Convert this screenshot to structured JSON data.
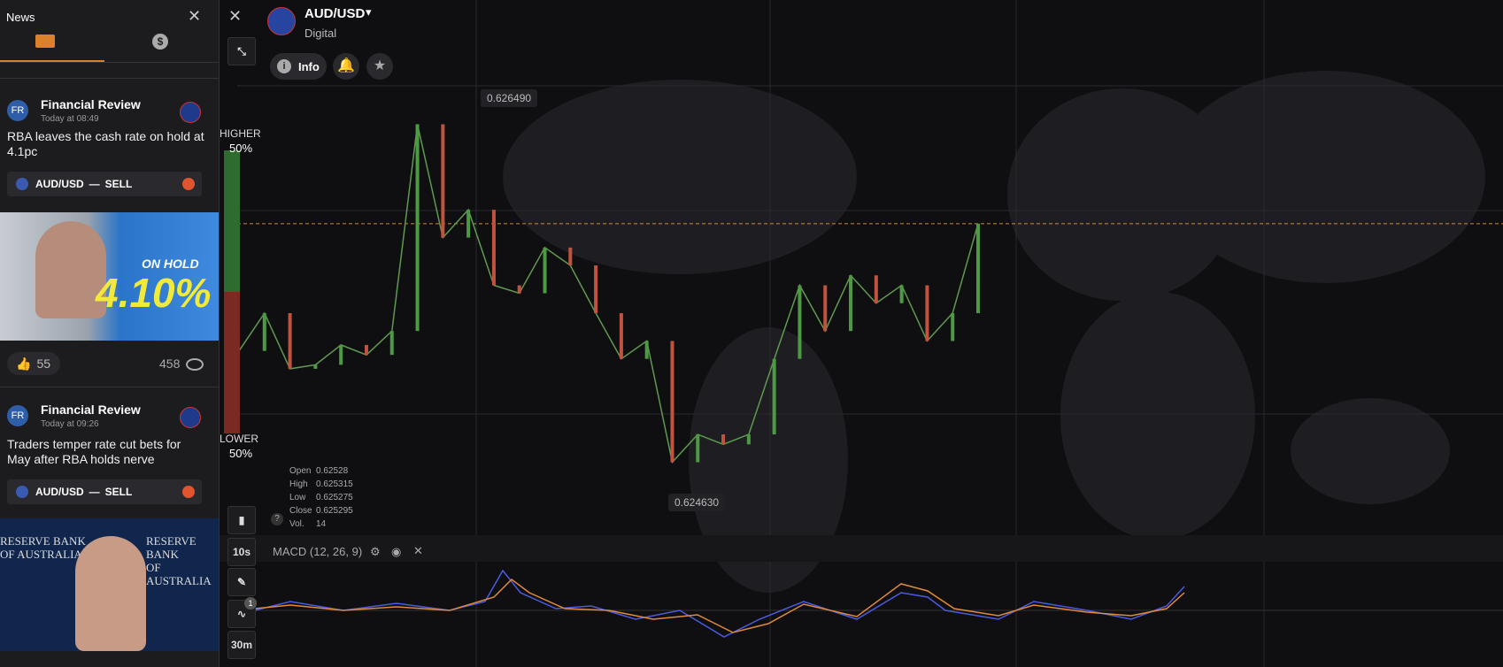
{
  "news_panel": {
    "title": "News",
    "items": [
      {
        "source": "Financial Review",
        "time": "Today at 08:49",
        "headline": "RBA leaves the cash rate on hold at 4.1pc",
        "pair": "AUD/USD",
        "action": "SELL",
        "image_text": [
          "ON HOLD",
          "4.10%"
        ],
        "likes": 55,
        "views": 458
      },
      {
        "source": "Financial Review",
        "time": "Today at 09:26",
        "headline": "Traders temper rate cut bets for May after RBA holds nerve",
        "pair": "AUD/USD",
        "action": "SELL",
        "image_text": [
          "RESERVE BANK",
          "OF AUSTRALIA"
        ]
      }
    ]
  },
  "asset": {
    "name": "AUD/USD",
    "kind": "Digital",
    "info": "Info"
  },
  "sentiment": {
    "higher": "HIGHER",
    "higher_pct": "50%",
    "lower": "LOWER",
    "lower_pct": "50%"
  },
  "chart": {
    "price_extremes": {
      "high": {
        "value": 0.62649,
        "label": "0.626490"
      },
      "low": {
        "value": 0.62463,
        "label": "0.624630"
      }
    },
    "prices": [
      0.62529,
      0.62548,
      0.6252,
      0.62522,
      0.62532,
      0.62527,
      0.62539,
      0.62643,
      0.62586,
      0.626,
      0.62562,
      0.62558,
      0.62581,
      0.62572,
      0.62548,
      0.62525,
      0.62534,
      0.62473,
      0.62487,
      0.62482,
      0.62487,
      0.62525,
      0.62562,
      0.62539,
      0.62567,
      0.62553,
      0.62562,
      0.62534,
      0.62548,
      0.62593
    ],
    "ohlc": [
      {
        "label": "Open",
        "value": "0.62528"
      },
      {
        "label": "High",
        "value": "0.625315"
      },
      {
        "label": "Low",
        "value": "0.625275"
      },
      {
        "label": "Close",
        "value": "0.625295"
      },
      {
        "label": "Vol.",
        "value": "14"
      }
    ]
  },
  "toolbar": {
    "timeframe": "10s",
    "badge": "1",
    "period": "30m"
  },
  "indicator": "MACD (12, 26, 9)"
}
